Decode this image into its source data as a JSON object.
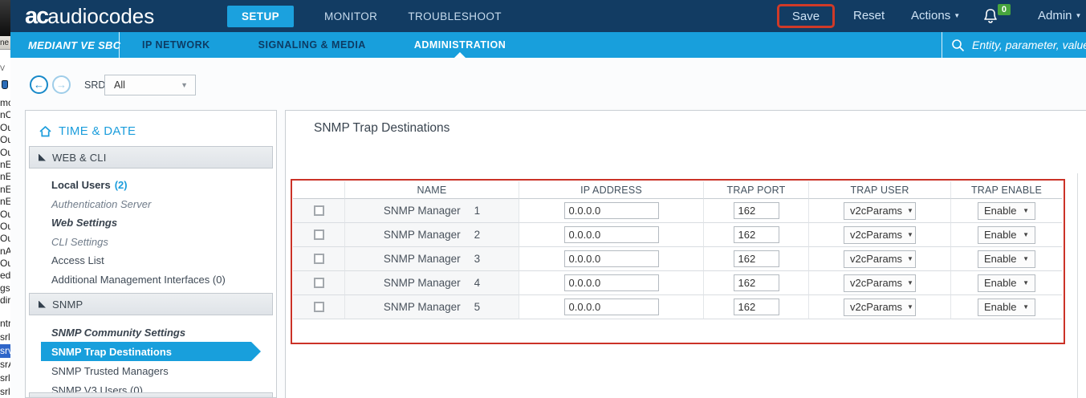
{
  "background_window_strip": {
    "button_fragment": "ne",
    "tiny_fragment": "V",
    "fragments_group1": [
      "mc",
      "nC",
      "Ou",
      "Ou",
      "Ou",
      "nE",
      "nE",
      "nE",
      "nE",
      "Ou",
      "Ou",
      "Ou",
      "nA",
      "Ou",
      "ed",
      "gs",
      "dir"
    ],
    "fragments_group2": [
      {
        "text": "ntr",
        "highlighted": false
      },
      {
        "text": "srl",
        "highlighted": false
      },
      {
        "text": "srv",
        "highlighted": true
      },
      {
        "text": "srA",
        "highlighted": false
      },
      {
        "text": "srl",
        "highlighted": false
      },
      {
        "text": "srl",
        "highlighted": false
      }
    ]
  },
  "topbar": {
    "logo_primary": "ac",
    "logo_secondary": "audiocodes",
    "tabs": [
      {
        "label": "SETUP",
        "active": true
      },
      {
        "label": "MONITOR",
        "active": false
      },
      {
        "label": "TROUBLESHOOT",
        "active": false
      }
    ],
    "save_label": "Save",
    "reset_label": "Reset",
    "actions_label": "Actions",
    "admin_label": "Admin",
    "notification_count": "0"
  },
  "subbar": {
    "product_label": "MEDIANT VE SBC",
    "menu": [
      {
        "label": "IP NETWORK",
        "active": false
      },
      {
        "label": "SIGNALING & MEDIA",
        "active": false
      },
      {
        "label": "ADMINISTRATION",
        "active": true
      }
    ],
    "search_placeholder": "Entity, parameter, value"
  },
  "toolbar": {
    "srd_label": "SRD",
    "srd_value": "All"
  },
  "sidebar": {
    "root_label": "TIME & DATE",
    "sections": [
      {
        "label": "WEB & CLI",
        "items": [
          {
            "label": "Local Users",
            "count": "(2)",
            "style": "bold"
          },
          {
            "label": "Authentication Server",
            "style": "italic"
          },
          {
            "label": "Web Settings",
            "style": "bold-italic"
          },
          {
            "label": "CLI Settings",
            "style": "italic"
          },
          {
            "label": "Access List",
            "style": "normal"
          },
          {
            "label": "Additional Management Interfaces (0)",
            "style": "normal"
          }
        ]
      },
      {
        "label": "SNMP",
        "items": [
          {
            "label": "SNMP Community Settings",
            "style": "bold-italic"
          },
          {
            "label": "SNMP Trap Destinations",
            "style": "selected"
          },
          {
            "label": "SNMP Trusted Managers",
            "style": "normal"
          },
          {
            "label": "SNMP V3 Users (0)",
            "style": "normal"
          }
        ]
      }
    ]
  },
  "main": {
    "title": "SNMP Trap Destinations",
    "table": {
      "headers": [
        "",
        "NAME",
        "IP ADDRESS",
        "TRAP PORT",
        "TRAP USER",
        "TRAP ENABLE"
      ],
      "rows": [
        {
          "name": "SNMP Manager",
          "index": "1",
          "ip": "0.0.0.0",
          "port": "162",
          "trap_user": "v2cParams",
          "trap_enable": "Enable"
        },
        {
          "name": "SNMP Manager",
          "index": "2",
          "ip": "0.0.0.0",
          "port": "162",
          "trap_user": "v2cParams",
          "trap_enable": "Enable"
        },
        {
          "name": "SNMP Manager",
          "index": "3",
          "ip": "0.0.0.0",
          "port": "162",
          "trap_user": "v2cParams",
          "trap_enable": "Enable"
        },
        {
          "name": "SNMP Manager",
          "index": "4",
          "ip": "0.0.0.0",
          "port": "162",
          "trap_user": "v2cParams",
          "trap_enable": "Enable"
        },
        {
          "name": "SNMP Manager",
          "index": "5",
          "ip": "0.0.0.0",
          "port": "162",
          "trap_user": "v2cParams",
          "trap_enable": "Enable"
        }
      ]
    }
  },
  "colors": {
    "navbar_navy": "#123c63",
    "accent_blue": "#189fdc",
    "annotation_red": "#cb3227",
    "badge_green": "#47a53d",
    "selected_item_blue": "#189fdc"
  }
}
